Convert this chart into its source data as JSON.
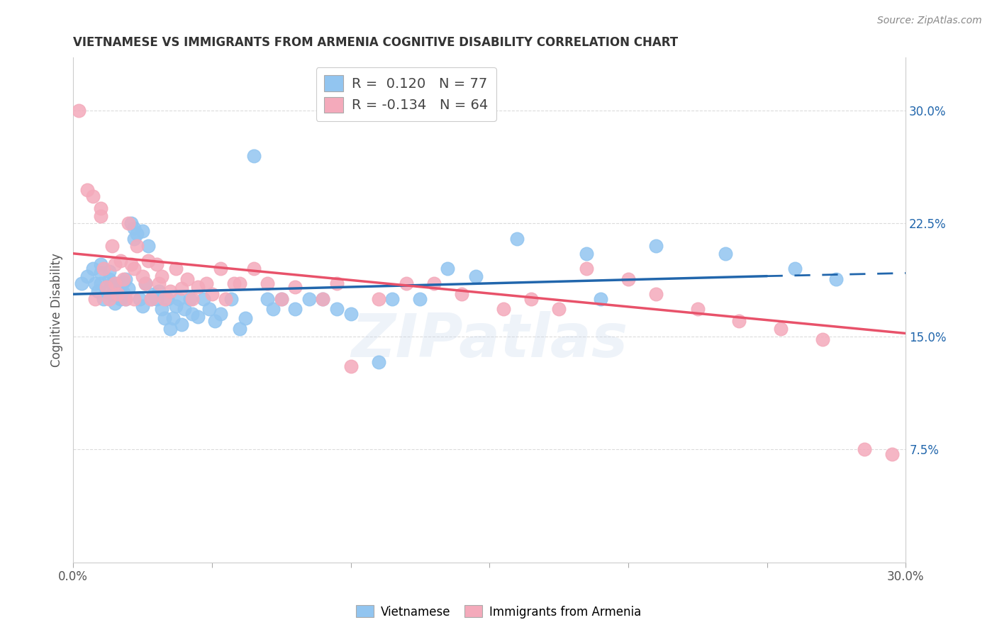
{
  "title": "VIETNAMESE VS IMMIGRANTS FROM ARMENIA COGNITIVE DISABILITY CORRELATION CHART",
  "source": "Source: ZipAtlas.com",
  "ylabel": "Cognitive Disability",
  "right_yticks": [
    "30.0%",
    "22.5%",
    "15.0%",
    "7.5%"
  ],
  "right_ytick_vals": [
    0.3,
    0.225,
    0.15,
    0.075
  ],
  "xlim": [
    0.0,
    0.3
  ],
  "ylim": [
    0.0,
    0.335
  ],
  "watermark": "ZIPatlas",
  "blue_color": "#92C5F0",
  "pink_color": "#F4AABB",
  "blue_line_color": "#2166AC",
  "pink_line_color": "#E8526A",
  "blue_r": 0.12,
  "pink_r": -0.134,
  "blue_n": 77,
  "pink_n": 64,
  "blue_scatter_x": [
    0.003,
    0.005,
    0.007,
    0.008,
    0.009,
    0.01,
    0.01,
    0.01,
    0.011,
    0.012,
    0.013,
    0.013,
    0.014,
    0.014,
    0.015,
    0.015,
    0.016,
    0.017,
    0.017,
    0.018,
    0.018,
    0.019,
    0.019,
    0.02,
    0.021,
    0.022,
    0.022,
    0.023,
    0.024,
    0.025,
    0.025,
    0.026,
    0.027,
    0.028,
    0.029,
    0.03,
    0.031,
    0.032,
    0.033,
    0.034,
    0.035,
    0.036,
    0.037,
    0.038,
    0.039,
    0.04,
    0.042,
    0.043,
    0.045,
    0.047,
    0.049,
    0.051,
    0.053,
    0.057,
    0.06,
    0.062,
    0.065,
    0.07,
    0.072,
    0.075,
    0.08,
    0.085,
    0.09,
    0.095,
    0.1,
    0.11,
    0.115,
    0.125,
    0.135,
    0.145,
    0.16,
    0.185,
    0.19,
    0.21,
    0.235,
    0.26,
    0.275
  ],
  "blue_scatter_y": [
    0.185,
    0.19,
    0.195,
    0.185,
    0.18,
    0.185,
    0.192,
    0.198,
    0.175,
    0.18,
    0.188,
    0.193,
    0.178,
    0.185,
    0.172,
    0.18,
    0.185,
    0.175,
    0.183,
    0.179,
    0.186,
    0.188,
    0.175,
    0.182,
    0.225,
    0.222,
    0.215,
    0.218,
    0.175,
    0.22,
    0.17,
    0.185,
    0.21,
    0.175,
    0.178,
    0.175,
    0.18,
    0.168,
    0.162,
    0.175,
    0.155,
    0.162,
    0.17,
    0.175,
    0.158,
    0.168,
    0.175,
    0.165,
    0.163,
    0.175,
    0.168,
    0.16,
    0.165,
    0.175,
    0.155,
    0.162,
    0.27,
    0.175,
    0.168,
    0.175,
    0.168,
    0.175,
    0.175,
    0.168,
    0.165,
    0.133,
    0.175,
    0.175,
    0.195,
    0.19,
    0.215,
    0.205,
    0.175,
    0.21,
    0.205,
    0.195,
    0.188
  ],
  "pink_scatter_x": [
    0.002,
    0.005,
    0.007,
    0.008,
    0.01,
    0.01,
    0.011,
    0.012,
    0.013,
    0.014,
    0.015,
    0.015,
    0.016,
    0.017,
    0.018,
    0.019,
    0.02,
    0.021,
    0.022,
    0.022,
    0.023,
    0.025,
    0.026,
    0.027,
    0.028,
    0.03,
    0.031,
    0.032,
    0.033,
    0.035,
    0.037,
    0.039,
    0.041,
    0.043,
    0.045,
    0.048,
    0.05,
    0.053,
    0.055,
    0.058,
    0.06,
    0.065,
    0.07,
    0.075,
    0.08,
    0.09,
    0.095,
    0.1,
    0.11,
    0.12,
    0.13,
    0.14,
    0.155,
    0.165,
    0.175,
    0.185,
    0.2,
    0.21,
    0.225,
    0.24,
    0.255,
    0.27,
    0.285,
    0.295
  ],
  "pink_scatter_y": [
    0.3,
    0.247,
    0.243,
    0.175,
    0.235,
    0.23,
    0.195,
    0.183,
    0.175,
    0.21,
    0.198,
    0.185,
    0.178,
    0.2,
    0.188,
    0.175,
    0.225,
    0.198,
    0.195,
    0.175,
    0.21,
    0.19,
    0.185,
    0.2,
    0.175,
    0.198,
    0.185,
    0.19,
    0.175,
    0.18,
    0.195,
    0.182,
    0.188,
    0.175,
    0.183,
    0.185,
    0.178,
    0.195,
    0.175,
    0.185,
    0.185,
    0.195,
    0.185,
    0.175,
    0.183,
    0.175,
    0.185,
    0.13,
    0.175,
    0.185,
    0.185,
    0.178,
    0.168,
    0.175,
    0.168,
    0.195,
    0.188,
    0.178,
    0.168,
    0.16,
    0.155,
    0.148,
    0.075,
    0.072
  ],
  "background_color": "#FFFFFF",
  "grid_color": "#CCCCCC",
  "blue_line_start_x": 0.0,
  "blue_line_start_y": 0.178,
  "blue_line_mid_x": 0.25,
  "blue_line_mid_y": 0.19,
  "blue_line_end_x": 0.3,
  "blue_line_end_y": 0.192,
  "pink_line_start_x": 0.0,
  "pink_line_start_y": 0.205,
  "pink_line_end_x": 0.3,
  "pink_line_end_y": 0.152
}
